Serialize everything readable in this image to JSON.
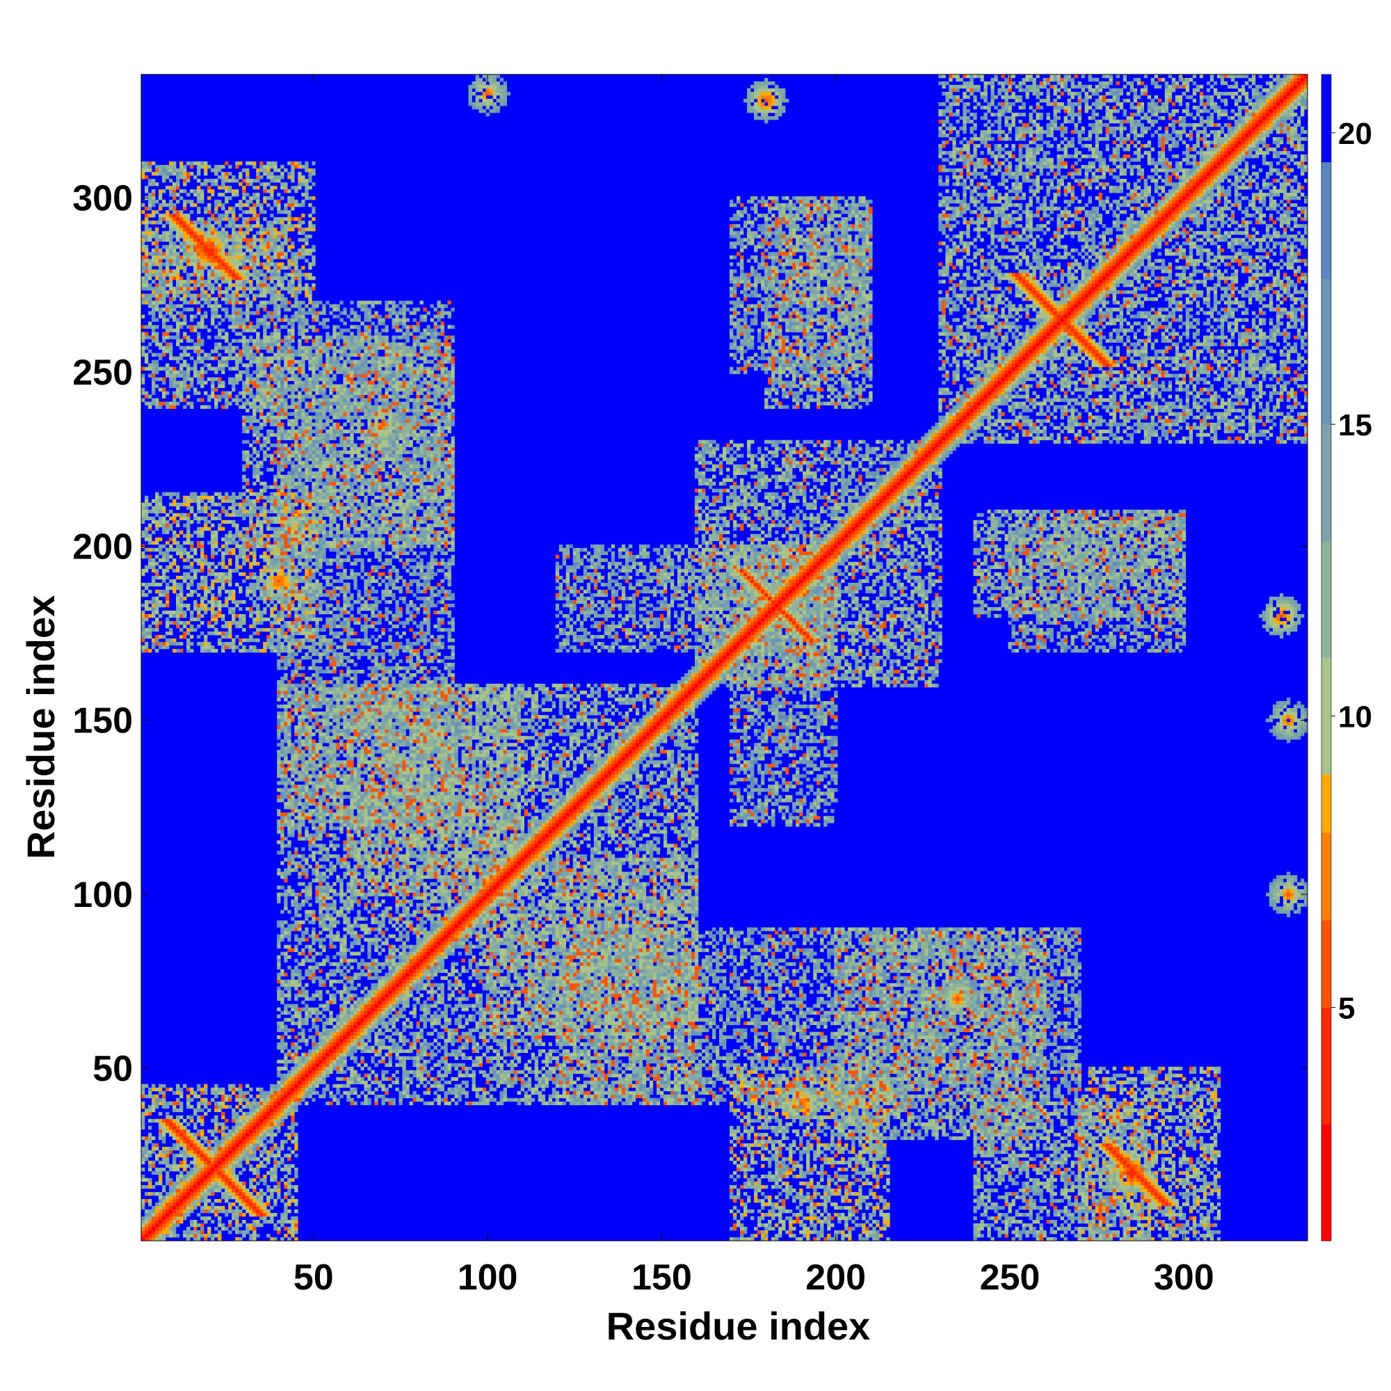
{
  "chart_data": {
    "type": "heatmap",
    "title": "",
    "xlabel": "Residue index",
    "ylabel": "Residue index",
    "n_residues": 335,
    "xlim": [
      1,
      335
    ],
    "ylim": [
      1,
      335
    ],
    "xticks": [
      50,
      100,
      150,
      200,
      250,
      300
    ],
    "yticks": [
      50,
      100,
      150,
      200,
      250,
      300
    ],
    "colorbar": {
      "range": [
        1,
        21
      ],
      "ticks": [
        5,
        10,
        15,
        20
      ],
      "colors": [
        "#ff0000",
        "#ff2a00",
        "#ff5500",
        "#ff8000",
        "#ffaa00",
        "#a9c48a",
        "#8fb29a",
        "#7aa3aa",
        "#6a94b8",
        "#5c86c2",
        "#0000ff"
      ],
      "stops": [
        1,
        3,
        5,
        6.5,
        8,
        9,
        11,
        13,
        15,
        17.5,
        19.5
      ]
    },
    "background_value": 21,
    "diagonal_band_values": [
      1,
      3.5,
      5.5,
      7,
      10,
      13,
      16
    ],
    "contact_blocks": [
      {
        "x": [
          1,
          45
        ],
        "y": [
          1,
          45
        ],
        "value": 12
      },
      {
        "x": [
          40,
          160
        ],
        "y": [
          40,
          160
        ],
        "value": 13
      },
      {
        "x": [
          160,
          230
        ],
        "y": [
          160,
          230
        ],
        "value": 13
      },
      {
        "x": [
          230,
          335
        ],
        "y": [
          230,
          335
        ],
        "value": 13
      },
      {
        "x": [
          1,
          50
        ],
        "y": [
          270,
          310
        ],
        "value": 12
      },
      {
        "x": [
          270,
          310
        ],
        "y": [
          1,
          50
        ],
        "value": 12
      },
      {
        "x": [
          1,
          50
        ],
        "y": [
          170,
          215
        ],
        "value": 12
      },
      {
        "x": [
          170,
          215
        ],
        "y": [
          1,
          50
        ],
        "value": 12
      },
      {
        "x": [
          40,
          90
        ],
        "y": [
          120,
          270
        ],
        "value": 14
      },
      {
        "x": [
          120,
          270
        ],
        "y": [
          40,
          90
        ],
        "value": 14
      },
      {
        "x": [
          120,
          200
        ],
        "y": [
          170,
          200
        ],
        "value": 14
      },
      {
        "x": [
          170,
          200
        ],
        "y": [
          120,
          200
        ],
        "value": 14
      },
      {
        "x": [
          180,
          210
        ],
        "y": [
          240,
          300
        ],
        "value": 13
      },
      {
        "x": [
          240,
          300
        ],
        "y": [
          180,
          210
        ],
        "value": 13
      },
      {
        "x": [
          100,
          160
        ],
        "y": [
          60,
          110
        ],
        "value": 13
      },
      {
        "x": [
          60,
          110
        ],
        "y": [
          100,
          160
        ],
        "value": 13
      },
      {
        "x": [
          200,
          260
        ],
        "y": [
          30,
          90
        ],
        "value": 13
      },
      {
        "x": [
          30,
          90
        ],
        "y": [
          200,
          260
        ],
        "value": 13
      },
      {
        "x": [
          250,
          300
        ],
        "y": [
          170,
          210
        ],
        "value": 14
      },
      {
        "x": [
          170,
          210
        ],
        "y": [
          250,
          300
        ],
        "value": 14
      },
      {
        "x": [
          240,
          290
        ],
        "y": [
          1,
          40
        ],
        "value": 13
      },
      {
        "x": [
          1,
          40
        ],
        "y": [
          240,
          290
        ],
        "value": 13
      }
    ],
    "hotspots": [
      {
        "x": 22,
        "y": 22,
        "value": 4
      },
      {
        "x": 20,
        "y": 285,
        "value": 3
      },
      {
        "x": 285,
        "y": 20,
        "value": 3
      },
      {
        "x": 265,
        "y": 265,
        "value": 4
      },
      {
        "x": 183,
        "y": 183,
        "value": 4
      },
      {
        "x": 100,
        "y": 330,
        "value": 6
      },
      {
        "x": 330,
        "y": 100,
        "value": 6
      },
      {
        "x": 328,
        "y": 180,
        "value": 5
      },
      {
        "x": 180,
        "y": 328,
        "value": 5
      },
      {
        "x": 330,
        "y": 150,
        "value": 6
      },
      {
        "x": 70,
        "y": 235,
        "value": 6
      },
      {
        "x": 235,
        "y": 70,
        "value": 6
      },
      {
        "x": 40,
        "y": 190,
        "value": 5
      },
      {
        "x": 190,
        "y": 40,
        "value": 5
      }
    ],
    "anti_diagonals": [
      {
        "from": [
          8,
          35
        ],
        "to": [
          35,
          8
        ],
        "value": 3
      },
      {
        "from": [
          10,
          295
        ],
        "to": [
          28,
          278
        ],
        "value": 3
      },
      {
        "from": [
          278,
          28
        ],
        "to": [
          295,
          10
        ],
        "value": 3
      },
      {
        "from": [
          252,
          278
        ],
        "to": [
          278,
          252
        ],
        "value": 3
      },
      {
        "from": [
          173,
          193
        ],
        "to": [
          193,
          173
        ],
        "value": 4
      }
    ]
  }
}
